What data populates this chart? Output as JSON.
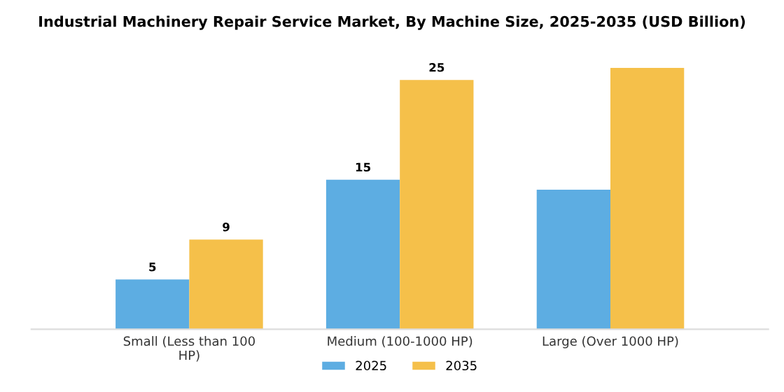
{
  "chart_data": {
    "type": "bar",
    "title": "Industrial Machinery Repair Service Market, By Machine Size, 2025-2035 (USD Billion)",
    "categories": [
      "Small (Less than 100\nHP)",
      "Medium (100-1000 HP)",
      "Large (Over 1000 HP)"
    ],
    "series": [
      {
        "name": "2025",
        "color": "#5dade2",
        "values": [
          5,
          15,
          14.0
        ],
        "value_labels": [
          "5",
          "15",
          null
        ]
      },
      {
        "name": "2035",
        "color": "#f5c04a",
        "values": [
          9,
          25,
          26.2
        ],
        "value_labels": [
          "9",
          "25",
          null
        ]
      }
    ],
    "legend": "bottom",
    "grid": false
  }
}
